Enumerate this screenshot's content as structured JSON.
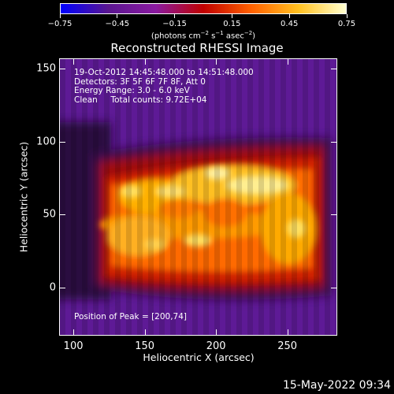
{
  "colorbar": {
    "ticks": [
      "−0.75",
      "−0.45",
      "−0.15",
      "0.15",
      "0.45",
      "0.75"
    ],
    "tick_values": [
      -0.75,
      -0.45,
      -0.15,
      0.15,
      0.45,
      0.75
    ],
    "range": [
      -0.75,
      0.75
    ],
    "units_text": "(photons cm",
    "units_sup1": "−2",
    "units_mid": " s",
    "units_sup2": "−1",
    "units_end": " asec",
    "units_sup3": "−2",
    "units_close": ")"
  },
  "plot": {
    "title": "Reconstructed RHESSI Image",
    "info_lines": [
      "19-Oct-2012 14:45:48.000 to 14:51:48.000",
      "Detectors: 3F 5F 6F 7F 8F, Att 0",
      "Energy Range: 3.0 - 6.0 keV",
      "Clean     Total counts: 9.72E+04"
    ],
    "peak_text": "Position of Peak = [200,74]",
    "xlabel": "Heliocentric X (arcsec)",
    "ylabel": "Heliocentric Y (arcsec)",
    "x_ticks": [
      "100",
      "150",
      "200",
      "250"
    ],
    "x_tick_values": [
      100,
      150,
      200,
      250
    ],
    "y_ticks": [
      "0",
      "50",
      "100",
      "150"
    ],
    "y_tick_values": [
      0,
      50,
      100,
      150
    ],
    "x_range": [
      90,
      285
    ],
    "y_range": [
      -33,
      157
    ],
    "peak_position": [
      200,
      74
    ]
  },
  "footer": {
    "timestamp": "15-May-2022 09:34"
  },
  "colors": {
    "background": "#000000",
    "foreground": "#ffffff",
    "colormap": [
      "#0000ff",
      "#5a1690",
      "#8a1aa0",
      "#c00000",
      "#ff6000",
      "#ffc020",
      "#ffffd0"
    ]
  }
}
